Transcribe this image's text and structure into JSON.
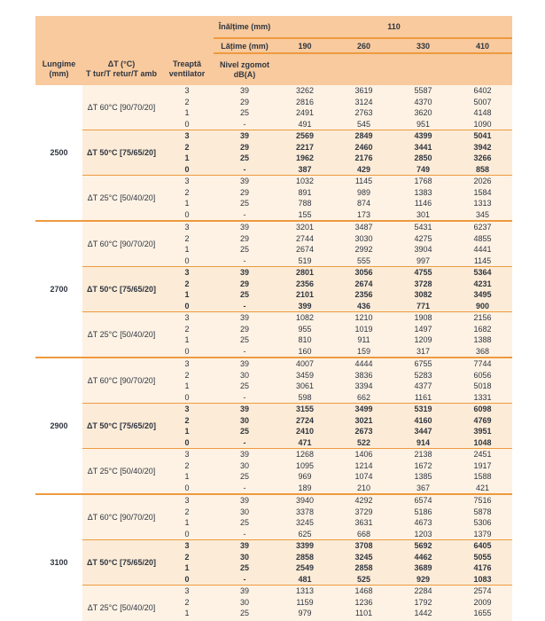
{
  "colors": {
    "page_bg": "#ffffff",
    "header_bg": "#f8ca9e",
    "body_bg": "#fdf2e4",
    "hl_bg": "#fcecd7",
    "line": "#ee9a3f",
    "text": "#2f3540"
  },
  "table": {
    "header": {
      "height_label": "Înălțime (mm)",
      "height_value": "110",
      "width_label": "Lățime (mm)",
      "width_values": [
        "190",
        "260",
        "330",
        "410"
      ],
      "col_length": [
        "Lungime",
        "(mm)"
      ],
      "col_delta_t": [
        "ΔT (°C)",
        "T tur/T retur/T amb"
      ],
      "col_fan": [
        "Treaptă",
        "ventilator"
      ],
      "col_noise": [
        "Nivel zgomot",
        "dB(A)"
      ]
    },
    "groups": [
      {
        "length": "2500",
        "sections": [
          {
            "label": "ΔT 60°C [90/70/20]",
            "highlight": false,
            "rows": [
              {
                "speed": "3",
                "noise": "39",
                "values": [
                  3262,
                  3619,
                  5587,
                  6402
                ]
              },
              {
                "speed": "2",
                "noise": "29",
                "values": [
                  2816,
                  3124,
                  4370,
                  5007
                ]
              },
              {
                "speed": "1",
                "noise": "25",
                "values": [
                  2491,
                  2763,
                  3620,
                  4148
                ]
              },
              {
                "speed": "0",
                "noise": "-",
                "values": [
                  491,
                  545,
                  951,
                  1090
                ]
              }
            ]
          },
          {
            "label": "ΔT 50°C [75/65/20]",
            "highlight": true,
            "rows": [
              {
                "speed": "3",
                "noise": "39",
                "values": [
                  2569,
                  2849,
                  4399,
                  5041
                ]
              },
              {
                "speed": "2",
                "noise": "29",
                "values": [
                  2217,
                  2460,
                  3441,
                  3942
                ]
              },
              {
                "speed": "1",
                "noise": "25",
                "values": [
                  1962,
                  2176,
                  2850,
                  3266
                ]
              },
              {
                "speed": "0",
                "noise": "-",
                "values": [
                  387,
                  429,
                  749,
                  858
                ]
              }
            ]
          },
          {
            "label": "ΔT 25°C [50/40/20]",
            "highlight": false,
            "rows": [
              {
                "speed": "3",
                "noise": "39",
                "values": [
                  1032,
                  1145,
                  1768,
                  2026
                ]
              },
              {
                "speed": "2",
                "noise": "29",
                "values": [
                  891,
                  989,
                  1383,
                  1584
                ]
              },
              {
                "speed": "1",
                "noise": "25",
                "values": [
                  788,
                  874,
                  1146,
                  1313
                ]
              },
              {
                "speed": "0",
                "noise": "-",
                "values": [
                  155,
                  173,
                  301,
                  345
                ]
              }
            ]
          }
        ]
      },
      {
        "length": "2700",
        "sections": [
          {
            "label": "ΔT 60°C [90/70/20]",
            "highlight": false,
            "rows": [
              {
                "speed": "3",
                "noise": "39",
                "values": [
                  3201,
                  3487,
                  5431,
                  6237
                ]
              },
              {
                "speed": "2",
                "noise": "29",
                "values": [
                  2744,
                  3030,
                  4275,
                  4855
                ]
              },
              {
                "speed": "1",
                "noise": "25",
                "values": [
                  2674,
                  2992,
                  3904,
                  4441
                ]
              },
              {
                "speed": "0",
                "noise": "-",
                "values": [
                  519,
                  555,
                  997,
                  1145
                ]
              }
            ]
          },
          {
            "label": "ΔT 50°C [75/65/20]",
            "highlight": true,
            "rows": [
              {
                "speed": "3",
                "noise": "39",
                "values": [
                  2801,
                  3056,
                  4755,
                  5364
                ]
              },
              {
                "speed": "2",
                "noise": "29",
                "values": [
                  2356,
                  2674,
                  3728,
                  4231
                ]
              },
              {
                "speed": "1",
                "noise": "25",
                "values": [
                  2101,
                  2356,
                  3082,
                  3495
                ]
              },
              {
                "speed": "0",
                "noise": "-",
                "values": [
                  399,
                  436,
                  771,
                  900
                ]
              }
            ]
          },
          {
            "label": "ΔT 25°C [50/40/20]",
            "highlight": false,
            "rows": [
              {
                "speed": "3",
                "noise": "39",
                "values": [
                  1082,
                  1210,
                  1908,
                  2156
                ]
              },
              {
                "speed": "2",
                "noise": "29",
                "values": [
                  955,
                  1019,
                  1497,
                  1682
                ]
              },
              {
                "speed": "1",
                "noise": "25",
                "values": [
                  810,
                  911,
                  1209,
                  1388
                ]
              },
              {
                "speed": "0",
                "noise": "-",
                "values": [
                  160,
                  159,
                  317,
                  368
                ]
              }
            ]
          }
        ]
      },
      {
        "length": "2900",
        "sections": [
          {
            "label": "ΔT 60°C [90/70/20]",
            "highlight": false,
            "rows": [
              {
                "speed": "3",
                "noise": "39",
                "values": [
                  4007,
                  4444,
                  6755,
                  7744
                ]
              },
              {
                "speed": "2",
                "noise": "30",
                "values": [
                  3459,
                  3836,
                  5283,
                  6056
                ]
              },
              {
                "speed": "1",
                "noise": "25",
                "values": [
                  3061,
                  3394,
                  4377,
                  5018
                ]
              },
              {
                "speed": "0",
                "noise": "-",
                "values": [
                  598,
                  662,
                  1161,
                  1331
                ]
              }
            ]
          },
          {
            "label": "ΔT 50°C [75/65/20]",
            "highlight": true,
            "rows": [
              {
                "speed": "3",
                "noise": "39",
                "values": [
                  3155,
                  3499,
                  5319,
                  6098
                ]
              },
              {
                "speed": "2",
                "noise": "30",
                "values": [
                  2724,
                  3021,
                  4160,
                  4769
                ]
              },
              {
                "speed": "1",
                "noise": "25",
                "values": [
                  2410,
                  2673,
                  3447,
                  3951
                ]
              },
              {
                "speed": "0",
                "noise": "-",
                "values": [
                  471,
                  522,
                  914,
                  1048
                ]
              }
            ]
          },
          {
            "label": "ΔT 25°C [50/40/20]",
            "highlight": false,
            "rows": [
              {
                "speed": "3",
                "noise": "39",
                "values": [
                  1268,
                  1406,
                  2138,
                  2451
                ]
              },
              {
                "speed": "2",
                "noise": "30",
                "values": [
                  1095,
                  1214,
                  1672,
                  1917
                ]
              },
              {
                "speed": "1",
                "noise": "25",
                "values": [
                  969,
                  1074,
                  1385,
                  1588
                ]
              },
              {
                "speed": "0",
                "noise": "-",
                "values": [
                  189,
                  210,
                  367,
                  421
                ]
              }
            ]
          }
        ]
      },
      {
        "length": "3100",
        "sections": [
          {
            "label": "ΔT 60°C [90/70/20]",
            "highlight": false,
            "rows": [
              {
                "speed": "3",
                "noise": "39",
                "values": [
                  3940,
                  4292,
                  6574,
                  7516
                ]
              },
              {
                "speed": "2",
                "noise": "30",
                "values": [
                  3378,
                  3729,
                  5186,
                  5878
                ]
              },
              {
                "speed": "1",
                "noise": "25",
                "values": [
                  3245,
                  3631,
                  4673,
                  5306
                ]
              },
              {
                "speed": "0",
                "noise": "-",
                "values": [
                  625,
                  668,
                  1203,
                  1379
                ]
              }
            ]
          },
          {
            "label": "ΔT 50°C [75/65/20]",
            "highlight": true,
            "rows": [
              {
                "speed": "3",
                "noise": "39",
                "values": [
                  3399,
                  3708,
                  5692,
                  6405
                ]
              },
              {
                "speed": "2",
                "noise": "30",
                "values": [
                  2858,
                  3245,
                  4462,
                  5055
                ]
              },
              {
                "speed": "1",
                "noise": "25",
                "values": [
                  2549,
                  2858,
                  3689,
                  4176
                ]
              },
              {
                "speed": "0",
                "noise": "-",
                "values": [
                  481,
                  525,
                  929,
                  1083
                ]
              }
            ]
          },
          {
            "label": "ΔT 25°C [50/40/20]",
            "highlight": false,
            "rows": [
              {
                "speed": "3",
                "noise": "39",
                "values": [
                  1313,
                  1468,
                  2284,
                  2574
                ]
              },
              {
                "speed": "2",
                "noise": "30",
                "values": [
                  1159,
                  1236,
                  1792,
                  2009
                ]
              },
              {
                "speed": "1",
                "noise": "25",
                "values": [
                  979,
                  1101,
                  1442,
                  1655
                ]
              },
              {
                "speed": "0",
                "noise": "-",
                "values": [
                  192,
                  191,
                  383,
                  443
                ]
              }
            ]
          }
        ]
      }
    ]
  }
}
